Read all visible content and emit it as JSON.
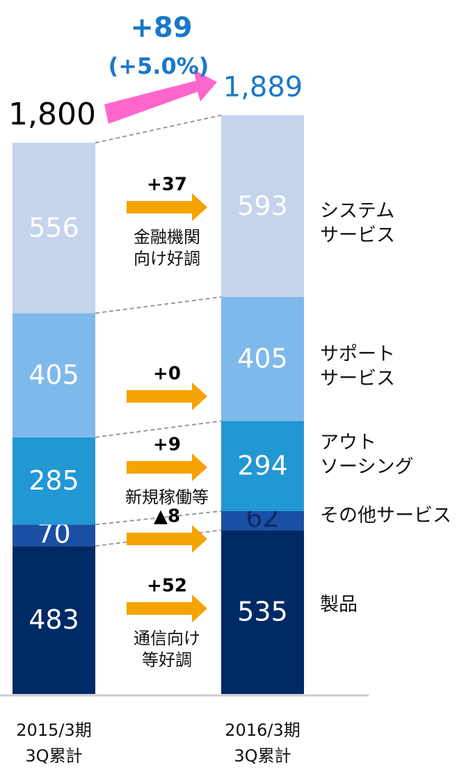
{
  "chart_data": {
    "type": "stacked_bar",
    "categories": [
      "2015/3期\n3Q累計",
      "2016/3期\n3Q累計"
    ],
    "series": [
      {
        "name": "製品",
        "color": "#002a66",
        "values": [
          483,
          535
        ]
      },
      {
        "name": "その他サービス",
        "color": "#1b4fa3",
        "values": [
          70,
          62
        ]
      },
      {
        "name": "アウト\nソーシング",
        "color": "#2197d4",
        "values": [
          285,
          294
        ]
      },
      {
        "name": "サポート\nサービス",
        "color": "#7fb9eb",
        "values": [
          405,
          405
        ]
      },
      {
        "name": "システム\nサービス",
        "color": "#c3d4eb",
        "values": [
          556,
          593
        ]
      }
    ],
    "totals": [
      {
        "value": 1800,
        "label": "1,800"
      },
      {
        "value": 1889,
        "label": "1,889"
      }
    ],
    "changes": {
      "values": [
        52,
        -8,
        9,
        0,
        37
      ],
      "value_labels": [
        "+52",
        "▲8",
        "+9",
        "+0",
        "+37"
      ],
      "color": "#f5a300"
    },
    "annotations": [
      "通信向け\n等好調",
      null,
      "新規稼働等",
      null,
      "金融機関\n向け好調"
    ],
    "total_change": {
      "value": 89,
      "label": "+89"
    },
    "total_change_pct": {
      "value": 5.0,
      "label": "(+5.0%)"
    },
    "total_change_color": "#ff66cc"
  }
}
